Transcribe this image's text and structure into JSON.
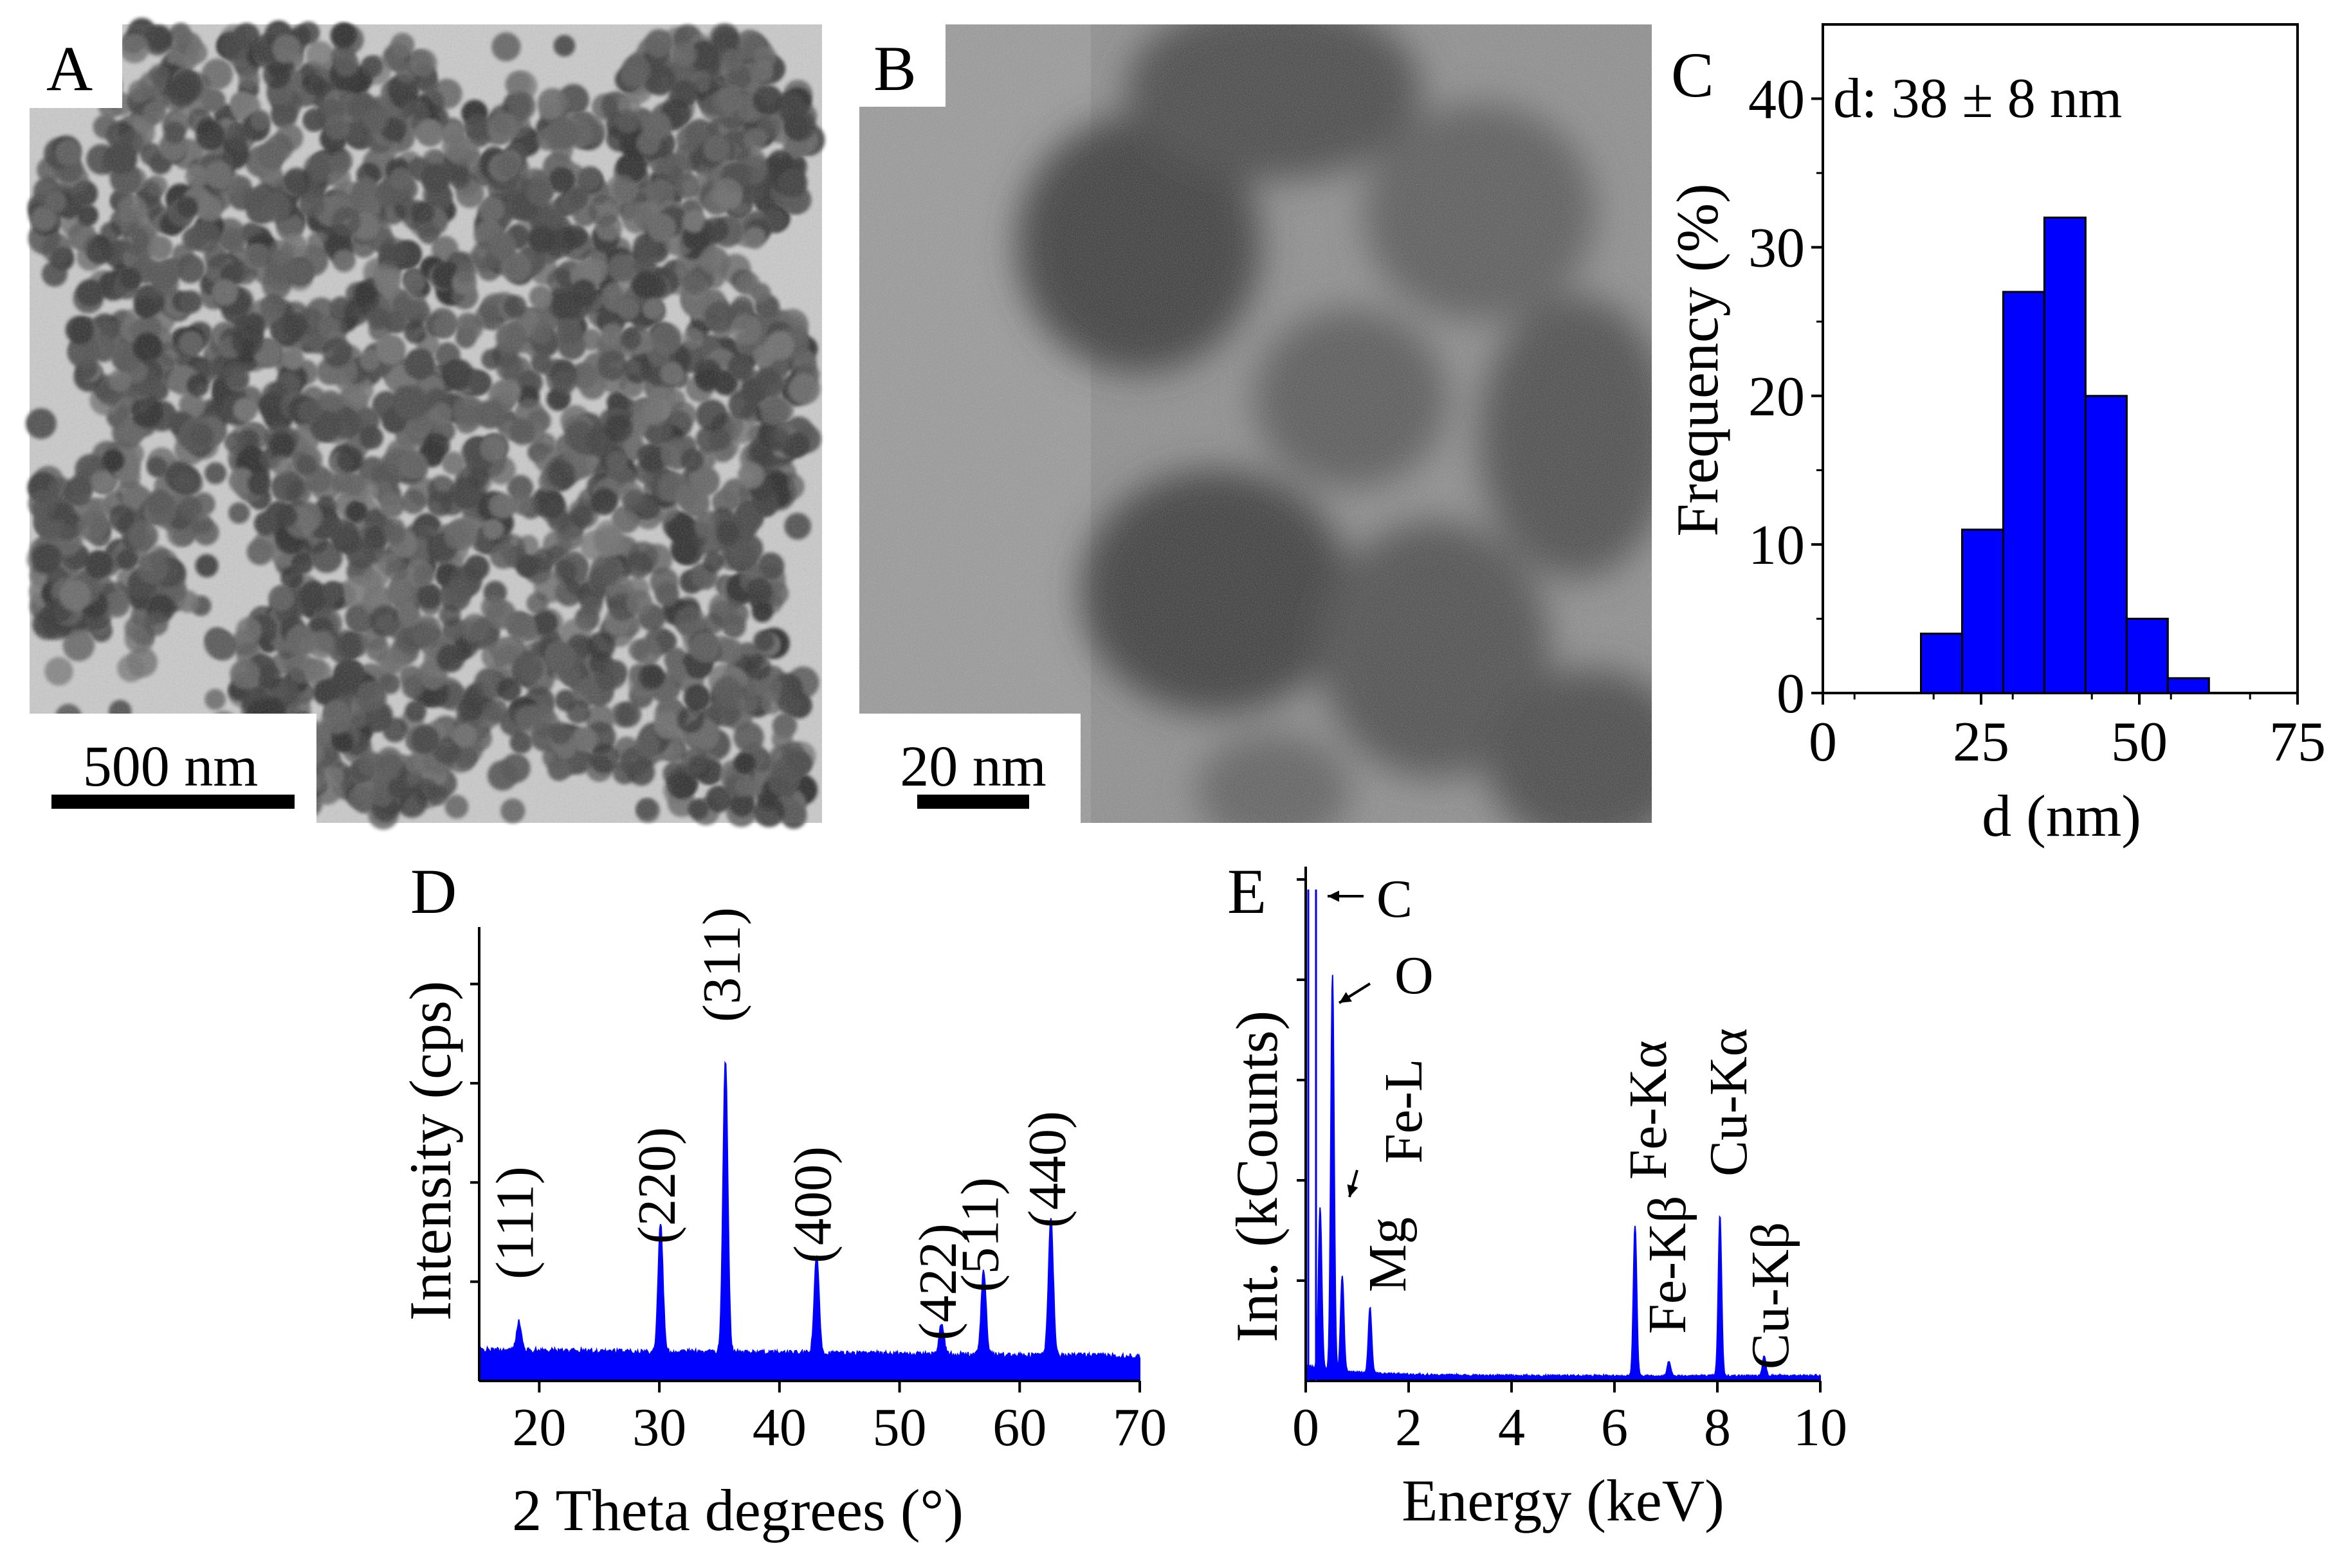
{
  "panels": {
    "A": {
      "letter": "A",
      "scalebar": "500 nm"
    },
    "B": {
      "letter": "B",
      "scalebar": "20 nm"
    }
  },
  "colors": {
    "bar": "#0000ff",
    "tem_bg_a": "#c9c9c9",
    "tem_bg_b": "#8a8a8a"
  },
  "chart_data": [
    {
      "panel": "C",
      "type": "bar",
      "annotation": "d: 38 ± 8 nm",
      "xlabel": "d (nm)",
      "ylabel": "Frequency (%)",
      "xlim": [
        0,
        75
      ],
      "ylim": [
        0,
        45
      ],
      "xticks": [
        0,
        25,
        50,
        75
      ],
      "yticks": [
        0,
        10,
        20,
        30,
        40
      ],
      "bin_width": 6.5,
      "x": [
        18.75,
        25.25,
        31.75,
        38.25,
        44.75,
        51.25,
        57.75
      ],
      "values": [
        4,
        11,
        27,
        32,
        20,
        5,
        1
      ]
    },
    {
      "panel": "D",
      "type": "area",
      "xlabel": "2 Theta degrees (°)",
      "ylabel": "Intensity (cps)",
      "xlim": [
        15,
        70
      ],
      "xticks": [
        20,
        30,
        40,
        50,
        60,
        70
      ],
      "baseline": 0.07,
      "ymax": 1.0,
      "peaks": [
        {
          "label": "(111)",
          "x": 18.3,
          "height": 0.065
        },
        {
          "label": "(220)",
          "x": 30.1,
          "height": 0.29
        },
        {
          "label": "(311)",
          "x": 35.5,
          "height": 0.66
        },
        {
          "label": "(400)",
          "x": 43.1,
          "height": 0.22
        },
        {
          "label": "(422)",
          "x": 53.5,
          "height": 0.07
        },
        {
          "label": "(511)",
          "x": 57.0,
          "height": 0.19
        },
        {
          "label": "(440)",
          "x": 62.6,
          "height": 0.31
        }
      ]
    },
    {
      "panel": "E",
      "type": "area",
      "xlabel": "Energy (keV)",
      "ylabel": "Int. (kCounts)",
      "xlim": [
        0,
        10
      ],
      "xticks": [
        0,
        2,
        4,
        6,
        8,
        10
      ],
      "peaks": [
        {
          "label": "C",
          "x": 0.28,
          "height": 0.32
        },
        {
          "label": "O",
          "x": 0.52,
          "height": 0.79
        },
        {
          "label": "Fe-L",
          "x": 0.71,
          "height": 0.19
        },
        {
          "label": "Mg",
          "x": 1.25,
          "height": 0.13
        },
        {
          "label": "Fe-Kα",
          "x": 6.4,
          "height": 0.3
        },
        {
          "label": "Fe-Kβ",
          "x": 7.06,
          "height": 0.03
        },
        {
          "label": "Cu-Kα",
          "x": 8.05,
          "height": 0.32
        },
        {
          "label": "Cu-Kβ",
          "x": 8.91,
          "height": 0.04
        }
      ],
      "extra_lines": [
        {
          "x": 0.05,
          "height": 0.98
        },
        {
          "x": 0.2,
          "height": 0.98
        }
      ]
    }
  ]
}
